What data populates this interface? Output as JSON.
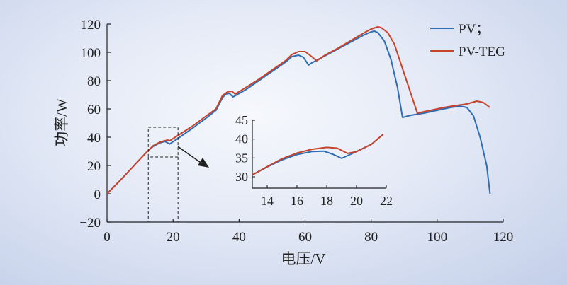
{
  "chart_data": {
    "type": "line",
    "xlabel": "电压/V",
    "ylabel": "功率/W",
    "xlim": [
      0,
      120
    ],
    "ylim": [
      -20,
      120
    ],
    "xticks": [
      0,
      20,
      40,
      60,
      80,
      100,
      120
    ],
    "yticks": [
      -20,
      0,
      20,
      40,
      60,
      80,
      100,
      120
    ],
    "xtick_labels": [
      "0",
      "20",
      "40",
      "60",
      "80",
      "100",
      "120"
    ],
    "ytick_labels": [
      "−20",
      "0",
      "20",
      "40",
      "60",
      "80",
      "100",
      "120"
    ],
    "grid": false,
    "legend_position": "top-right",
    "colors": {
      "PV": "#2f6db5",
      "PV-TEG": "#c8432b"
    },
    "series": [
      {
        "name": "PV；",
        "points": [
          [
            0,
            0
          ],
          [
            4,
            9.5
          ],
          [
            8,
            19.5
          ],
          [
            12,
            29.5
          ],
          [
            14,
            33.5
          ],
          [
            16,
            36
          ],
          [
            17.5,
            37
          ],
          [
            18.2,
            36.2
          ],
          [
            19,
            35.2
          ],
          [
            22,
            40
          ],
          [
            26,
            46.5
          ],
          [
            30,
            53.5
          ],
          [
            33,
            59
          ],
          [
            35,
            68
          ],
          [
            36,
            70.5
          ],
          [
            37,
            71
          ],
          [
            38.2,
            68.5
          ],
          [
            42,
            73.5
          ],
          [
            46,
            80
          ],
          [
            50,
            86.5
          ],
          [
            54,
            93
          ],
          [
            56,
            97
          ],
          [
            58,
            98
          ],
          [
            59.5,
            96.5
          ],
          [
            61,
            91
          ],
          [
            62,
            92.5
          ],
          [
            66,
            97.5
          ],
          [
            70,
            102.5
          ],
          [
            74,
            107.5
          ],
          [
            78,
            112.5
          ],
          [
            80,
            114.5
          ],
          [
            81,
            115
          ],
          [
            82,
            114
          ],
          [
            84,
            108
          ],
          [
            86,
            95
          ],
          [
            88,
            75
          ],
          [
            89.5,
            54
          ],
          [
            92,
            55.5
          ],
          [
            96,
            57
          ],
          [
            100,
            59
          ],
          [
            104,
            61
          ],
          [
            107,
            62
          ],
          [
            109,
            61
          ],
          [
            111,
            55
          ],
          [
            113,
            40
          ],
          [
            115,
            20
          ],
          [
            116,
            0
          ]
        ]
      },
      {
        "name": "PV-TEG",
        "points": [
          [
            0,
            0
          ],
          [
            4,
            9.5
          ],
          [
            8,
            19.5
          ],
          [
            12,
            29.5
          ],
          [
            14,
            34
          ],
          [
            16,
            36.5
          ],
          [
            17.5,
            37.5
          ],
          [
            18.5,
            38
          ],
          [
            19,
            37.5
          ],
          [
            20,
            39
          ],
          [
            22,
            42
          ],
          [
            26,
            48
          ],
          [
            30,
            55
          ],
          [
            33,
            60
          ],
          [
            35,
            69.5
          ],
          [
            36.5,
            72
          ],
          [
            37.8,
            72.5
          ],
          [
            38.8,
            70.5
          ],
          [
            42,
            75
          ],
          [
            46,
            81
          ],
          [
            50,
            87.5
          ],
          [
            54,
            94
          ],
          [
            56,
            98.5
          ],
          [
            58,
            100.5
          ],
          [
            60,
            100.5
          ],
          [
            62,
            97
          ],
          [
            63.5,
            94
          ],
          [
            66,
            98
          ],
          [
            70,
            103
          ],
          [
            74,
            108.5
          ],
          [
            78,
            114
          ],
          [
            80,
            116.5
          ],
          [
            82,
            118
          ],
          [
            83,
            117.5
          ],
          [
            85,
            114
          ],
          [
            87,
            106
          ],
          [
            89,
            92
          ],
          [
            91,
            78
          ],
          [
            94,
            57
          ],
          [
            98,
            59
          ],
          [
            102,
            61
          ],
          [
            106,
            62.5
          ],
          [
            109,
            63.5
          ],
          [
            112,
            65.5
          ],
          [
            114,
            64.5
          ],
          [
            116,
            61
          ]
        ]
      }
    ],
    "zoom_box": {
      "x": [
        12.5,
        21.5
      ],
      "y": [
        26,
        47
      ]
    },
    "inset": {
      "xlim": [
        13,
        22
      ],
      "ylim": [
        27,
        45
      ],
      "xticks": [
        14,
        16,
        18,
        20,
        22
      ],
      "yticks": [
        30,
        35,
        40,
        45
      ],
      "xtick_labels": [
        "14",
        "16",
        "18",
        "20",
        "22"
      ],
      "ytick_labels": [
        "30",
        "35",
        "40",
        "45"
      ],
      "series": [
        {
          "name": "PV；",
          "points": [
            [
              13,
              30.5
            ],
            [
              14,
              32.6
            ],
            [
              15,
              34.5
            ],
            [
              16,
              35.9
            ],
            [
              17,
              36.7
            ],
            [
              17.8,
              36.8
            ],
            [
              18.4,
              36
            ],
            [
              19,
              34.9
            ],
            [
              20,
              36.7
            ],
            [
              21,
              38.6
            ],
            [
              21.8,
              41.3
            ]
          ]
        },
        {
          "name": "PV-TEG",
          "points": [
            [
              13,
              30.5
            ],
            [
              14,
              32.7
            ],
            [
              15,
              34.8
            ],
            [
              16,
              36.3
            ],
            [
              17,
              37.3
            ],
            [
              18,
              37.8
            ],
            [
              18.7,
              37.6
            ],
            [
              19.4,
              36.2
            ],
            [
              20,
              36.7
            ],
            [
              21,
              38.6
            ],
            [
              21.8,
              41.3
            ]
          ]
        }
      ]
    }
  }
}
